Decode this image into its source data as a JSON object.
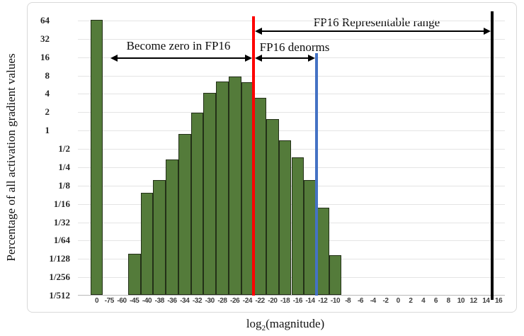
{
  "chart": {
    "x_axis_title": {
      "pre": "log",
      "sub": "2",
      "post": "(magnitude)"
    }
  },
  "chart_data": {
    "type": "bar",
    "title": "",
    "xlabel": "log2(magnitude)",
    "ylabel": "Percentage of all activation gradient values",
    "y_scale": "log2",
    "ylim": [
      "1/512",
      "64"
    ],
    "grid": true,
    "legend": false,
    "y_tick_labels": [
      "64",
      "32",
      "16",
      "8",
      "4",
      "2",
      "1",
      "1/2",
      "1/4",
      "1/8",
      "1/16",
      "1/32",
      "1/64",
      "1/128",
      "1/256",
      "1/512"
    ],
    "categories": [
      "0",
      "-75",
      "-60",
      "-45",
      "-40",
      "-38",
      "-36",
      "-34",
      "-32",
      "-30",
      "-28",
      "-26",
      "-24",
      "-22",
      "-20",
      "-18",
      "-16",
      "-14",
      "-12",
      "-10",
      "-8",
      "-6",
      "-4",
      "-2",
      "0",
      "2",
      "4",
      "6",
      "8",
      "10",
      "12",
      "14",
      "16"
    ],
    "values": [
      64,
      0,
      0,
      0.0093,
      0.093,
      0.15,
      0.33,
      0.85,
      1.9,
      4.0,
      6.3,
      7.5,
      6.0,
      3.4,
      1.5,
      0.67,
      0.35,
      0.15,
      0.053,
      0.0087,
      0,
      0,
      0,
      0,
      0,
      0,
      0,
      0,
      0,
      0,
      0,
      0,
      0
    ],
    "bar_color": "#547b3a",
    "bar_border_color": "#233018",
    "gridline_color": "#e4e4e4",
    "reference_lines": [
      {
        "name": "fp16-min-denorm",
        "color": "#fe0000",
        "after_category": "-24"
      },
      {
        "name": "fp16-min-norm",
        "color": "#4472c4",
        "after_category": "-14"
      },
      {
        "name": "fp16-max",
        "color": "#000000",
        "after_category": "14"
      }
    ],
    "annotations": [
      "Become zero in FP16",
      "FP16 denorms",
      "FP16 Representable range"
    ]
  }
}
